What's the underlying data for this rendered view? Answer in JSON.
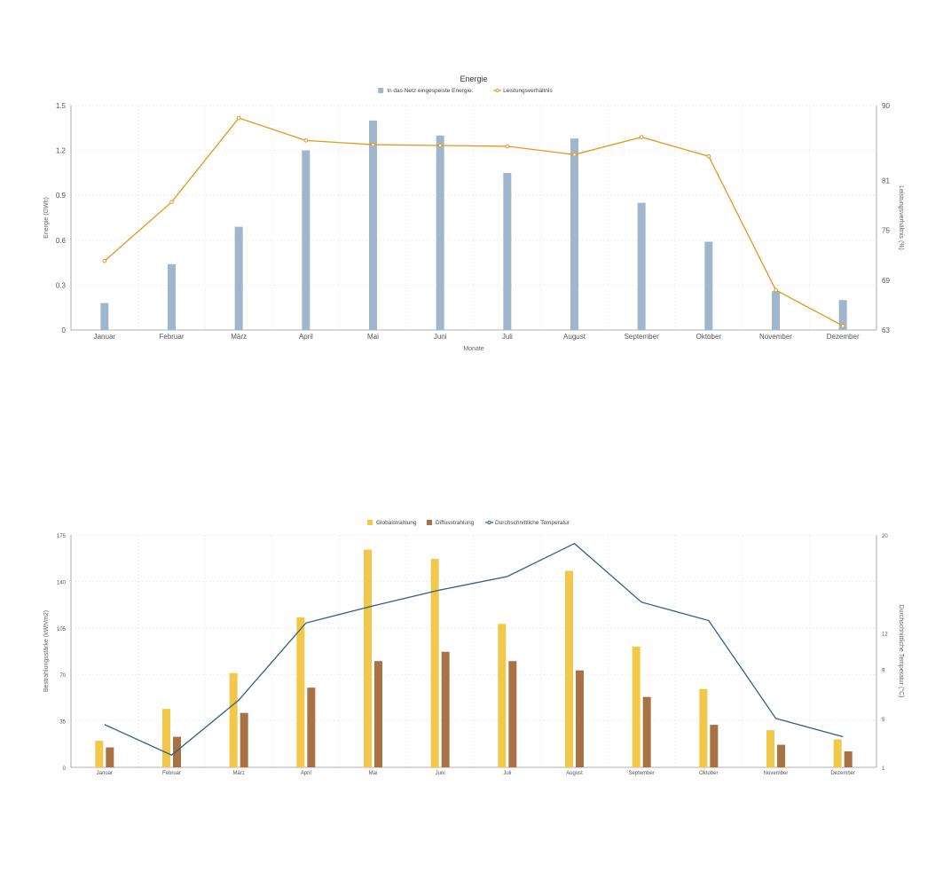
{
  "chart_data": [
    {
      "type": "bar",
      "title": "Energie",
      "xlabel": "Monate",
      "ylabel": "Energie (GWh)",
      "y2label": "Leistungsverhältnis (%)",
      "categories": [
        "Januar",
        "Februar",
        "März",
        "April",
        "Mai",
        "Juni",
        "Juli",
        "August",
        "September",
        "Oktober",
        "November",
        "Dezember"
      ],
      "ylim": [
        0,
        1.5
      ],
      "yticks": [
        "0",
        "0.3",
        "0.6",
        "0.9",
        "1.2",
        "1.5"
      ],
      "y2lim": [
        63,
        90
      ],
      "y2ticks": [
        "63",
        "69",
        "75",
        "81",
        "90"
      ],
      "y2tick_values": [
        63,
        69,
        75,
        81,
        90
      ],
      "grid": true,
      "legend": "top-center",
      "series": [
        {
          "name": "In das Netz eingespeiste Energie.",
          "type": "bar",
          "axis": "left",
          "color": "#9fb6cc",
          "values": [
            0.18,
            0.44,
            0.69,
            1.2,
            1.4,
            1.3,
            1.05,
            1.28,
            0.85,
            0.59,
            0.26,
            0.2
          ]
        },
        {
          "name": "Leistungsverhältnis",
          "type": "line",
          "axis": "right",
          "color": "#e8961e",
          "values": [
            71.3,
            78.4,
            88.5,
            85.8,
            85.3,
            85.2,
            85.1,
            84.1,
            86.2,
            83.9,
            67.8,
            63.5
          ]
        }
      ]
    },
    {
      "type": "bar",
      "title": "",
      "xlabel": "",
      "ylabel": "Bestrahlungsstärke (kWh/m2)",
      "y2label": "Durchschnittliche Temperatur (°C)",
      "categories": [
        "Januar",
        "Februar",
        "März",
        "April",
        "Mai",
        "Juni",
        "Juli",
        "August",
        "September",
        "Oktober",
        "November",
        "Dezember"
      ],
      "ylim": [
        0,
        175
      ],
      "yticks": [
        "0",
        "35",
        "70",
        "105",
        "140",
        "175"
      ],
      "y2lim": [
        1,
        20
      ],
      "y2ticks": [
        "1",
        "5",
        "9",
        "12",
        "20"
      ],
      "y2tick_values": [
        1,
        5,
        9,
        12,
        20
      ],
      "grid": true,
      "legend": "top-center",
      "series": [
        {
          "name": "Globalstrahlung",
          "type": "bar",
          "axis": "left",
          "color": "#f2c84b",
          "values": [
            20,
            44,
            71,
            113,
            164,
            157,
            108,
            148,
            91,
            59,
            28,
            21
          ]
        },
        {
          "name": "Diffusstrahlung",
          "type": "bar",
          "axis": "left",
          "color": "#a87245",
          "values": [
            15,
            23,
            41,
            60,
            80,
            87,
            80,
            73,
            53,
            32,
            17,
            12
          ]
        },
        {
          "name": "Durchschnittliche Temperatur",
          "type": "line",
          "axis": "right",
          "color": "#2f5f8a",
          "values": [
            4.5,
            2.0,
            6.5,
            12.8,
            14.2,
            15.5,
            16.6,
            19.3,
            14.5,
            13.0,
            5.0,
            3.5
          ]
        }
      ]
    }
  ]
}
